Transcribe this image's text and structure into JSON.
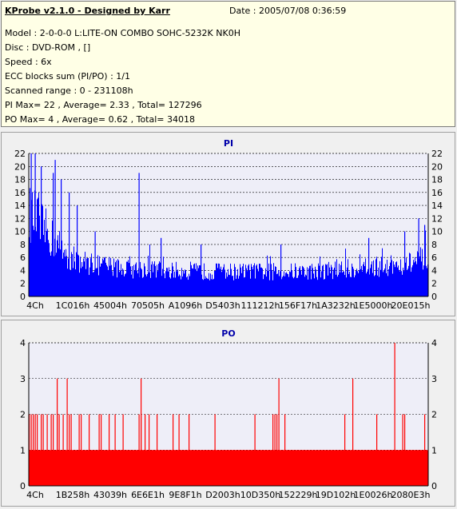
{
  "header": {
    "app_title": "KProbe v2.1.0 - Designed by Karr",
    "date": "Date : 2005/07/08 0:36:59"
  },
  "info_lines": [
    "Model : 2-0-0-0 L:LITE-ON COMBO SOHC-5232K NK0H",
    "Disc : DVD-ROM ,  []",
    "Speed : 6x",
    "ECC blocks sum (PI/PO) : 1/1",
    "Scanned range : 0 - 231108h",
    "PI Max= 22 , Average= 2.33 , Total= 127296",
    "PO Max= 4 , Average= 0.62 , Total= 34018"
  ],
  "colors": {
    "pi_bar": "#0000ff",
    "po_bar": "#ff0000",
    "plot_bg": "#eeeef8",
    "title_blue": "#0000aa"
  },
  "chart_data": [
    {
      "type": "bar",
      "title": "PI",
      "xlabel": "",
      "ylabel": "",
      "ylim": [
        0,
        22
      ],
      "yticks": [
        0,
        2,
        4,
        6,
        8,
        10,
        12,
        14,
        16,
        18,
        20,
        22
      ],
      "xtick_labels": [
        "4Ch",
        "1C016h",
        "45004h",
        "70505h",
        "A1096h",
        "D5403h",
        "111212h",
        "156F17h",
        "1A3232h",
        "1E5000h",
        "20E015h"
      ],
      "profile_x": [
        0,
        0.02,
        0.05,
        0.08,
        0.1,
        0.15,
        0.2,
        0.25,
        0.3,
        0.4,
        0.5,
        0.6,
        0.7,
        0.8,
        0.9,
        0.95,
        1.0
      ],
      "profile_y": [
        15,
        14,
        11,
        9,
        7,
        6,
        5.5,
        5,
        5,
        4.5,
        4.5,
        4.5,
        4.5,
        5,
        5.5,
        6,
        6.5
      ],
      "spikes": [
        {
          "x": 0.005,
          "y": 22
        },
        {
          "x": 0.015,
          "y": 22
        },
        {
          "x": 0.03,
          "y": 20
        },
        {
          "x": 0.065,
          "y": 21
        },
        {
          "x": 0.06,
          "y": 19
        },
        {
          "x": 0.08,
          "y": 18
        },
        {
          "x": 0.1,
          "y": 16
        },
        {
          "x": 0.12,
          "y": 14
        },
        {
          "x": 0.165,
          "y": 10
        },
        {
          "x": 0.275,
          "y": 19
        },
        {
          "x": 0.33,
          "y": 9
        },
        {
          "x": 0.43,
          "y": 8
        },
        {
          "x": 0.63,
          "y": 8
        },
        {
          "x": 0.85,
          "y": 9
        },
        {
          "x": 0.94,
          "y": 10
        },
        {
          "x": 0.975,
          "y": 12
        },
        {
          "x": 0.99,
          "y": 11
        }
      ],
      "average": 2.33,
      "max": 22
    },
    {
      "type": "bar",
      "title": "PO",
      "xlabel": "",
      "ylabel": "",
      "ylim": [
        0,
        4
      ],
      "yticks": [
        0,
        1,
        2,
        3,
        4
      ],
      "xtick_labels": [
        "4Ch",
        "1B258h",
        "43039h",
        "6E6E1h",
        "9E8F1h",
        "D2003h",
        "10D350h",
        "152229h",
        "19D102h",
        "1E0026h",
        "2080E3h"
      ],
      "base_level": 1,
      "twos": [
        0.0,
        0.005,
        0.01,
        0.015,
        0.02,
        0.03,
        0.035,
        0.045,
        0.055,
        0.06,
        0.07,
        0.075,
        0.085,
        0.1,
        0.105,
        0.125,
        0.13,
        0.15,
        0.175,
        0.18,
        0.2,
        0.215,
        0.235,
        0.275,
        0.28,
        0.29,
        0.3,
        0.32,
        0.36,
        0.375,
        0.4,
        0.465,
        0.565,
        0.61,
        0.615,
        0.62,
        0.64,
        0.79,
        0.87,
        0.935,
        0.94,
        0.99
      ],
      "threes": [
        0.07,
        0.095,
        0.28,
        0.625,
        0.81
      ],
      "fours": [
        0.915
      ],
      "average": 0.62,
      "max": 4
    }
  ]
}
